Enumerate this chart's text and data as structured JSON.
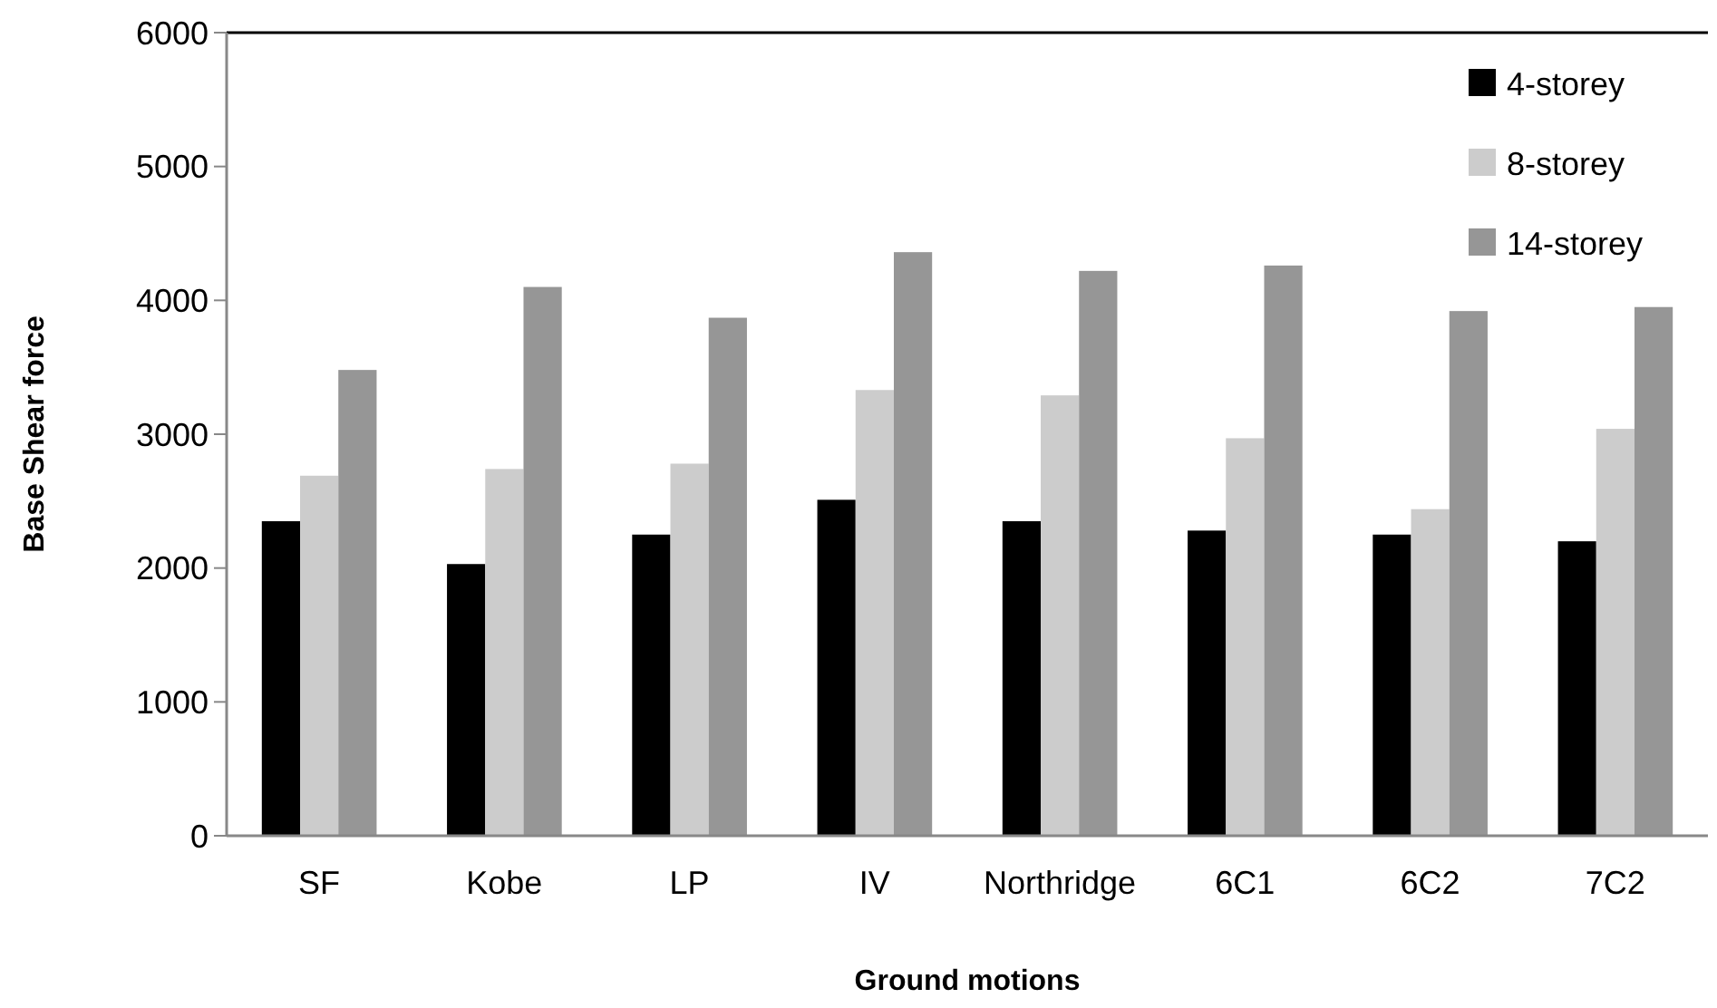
{
  "chart_data": {
    "type": "bar",
    "xlabel": "Ground motions",
    "ylabel": "Base Shear force",
    "categories": [
      "SF",
      "Kobe",
      "LP",
      "IV",
      "Northridge",
      "6C1",
      "6C2",
      "7C2"
    ],
    "series": [
      {
        "name": "4-storey",
        "color": "#000000",
        "values": [
          2350,
          2030,
          2250,
          2510,
          2350,
          2280,
          2250,
          2200
        ]
      },
      {
        "name": "8-storey",
        "color": "#cccccc",
        "values": [
          2690,
          2740,
          2780,
          3330,
          3290,
          2970,
          2440,
          3040
        ]
      },
      {
        "name": "14-storey",
        "color": "#969696",
        "values": [
          3480,
          4100,
          3870,
          4360,
          4220,
          4260,
          3920,
          3950
        ]
      }
    ],
    "ylim": [
      0,
      6000
    ],
    "yticks": [
      0,
      1000,
      2000,
      3000,
      4000,
      5000,
      6000
    ],
    "grid": false,
    "legend": "top right"
  }
}
